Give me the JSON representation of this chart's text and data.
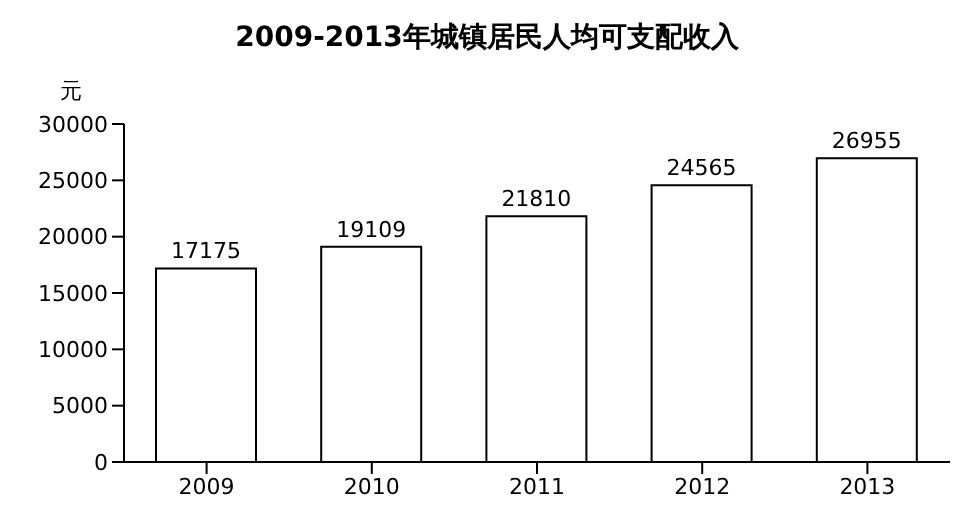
{
  "chart_data": {
    "type": "bar",
    "title": "2009-2013年城镇居民人均可支配收入",
    "ylabel": "元",
    "categories": [
      "2009",
      "2010",
      "2011",
      "2012",
      "2013"
    ],
    "values": [
      17175,
      19109,
      21810,
      24565,
      26955
    ],
    "color": "#ffffff",
    "ylim": [
      0,
      30000
    ],
    "yticks": [
      0,
      5000,
      10000,
      15000,
      20000,
      25000,
      30000
    ],
    "data_labels": true
  }
}
